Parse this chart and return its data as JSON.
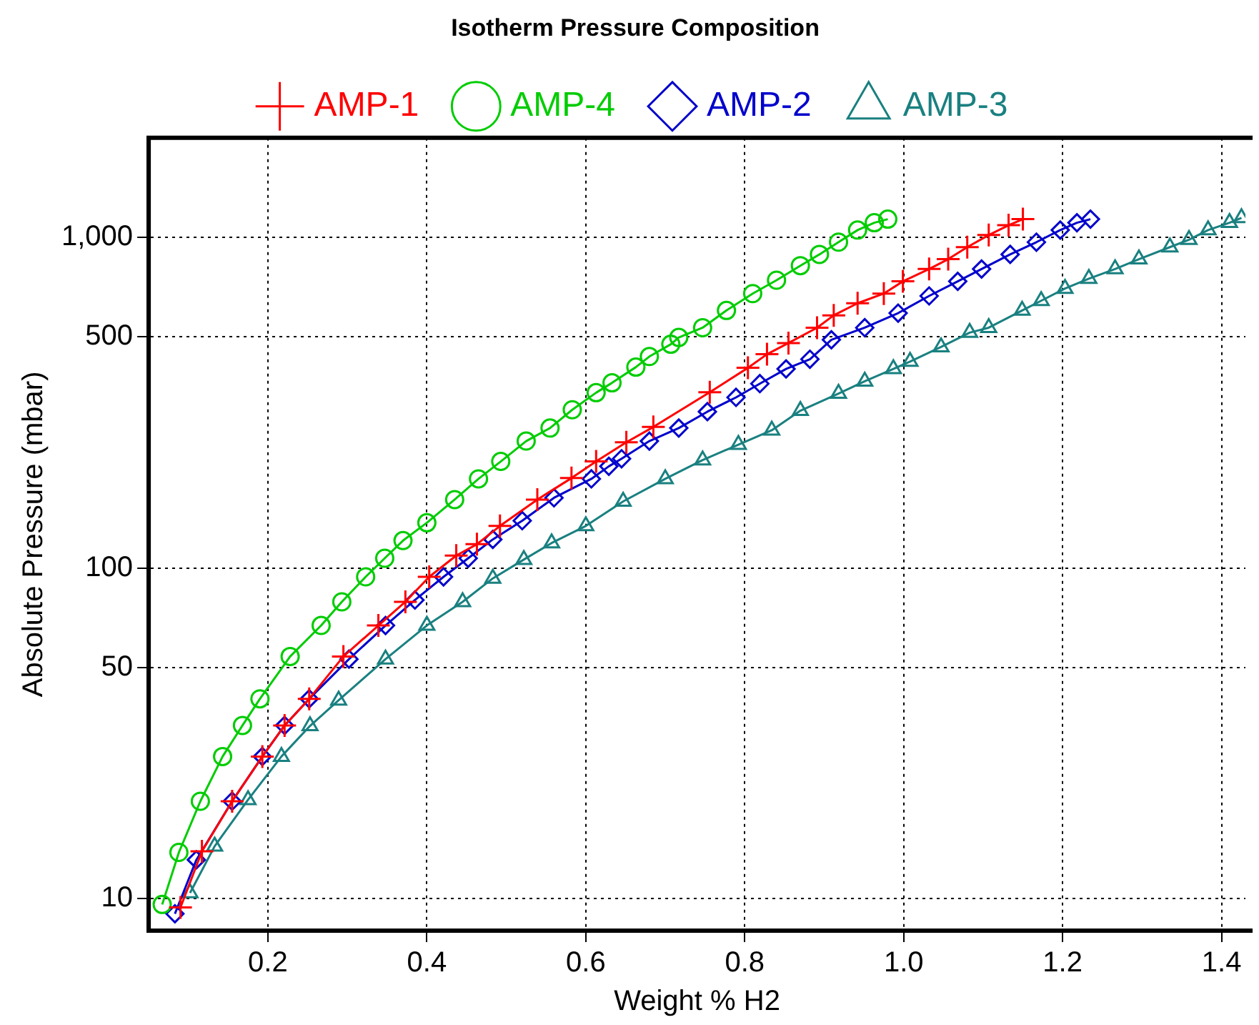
{
  "chart_data": {
    "type": "line",
    "title": "Isotherm Pressure Composition",
    "xlabel": "Weight % H2",
    "ylabel": "Absolute Pressure (mbar)",
    "log": "y",
    "grid": true,
    "legend": "top",
    "line_style": "solid",
    "xlim": [
      0.05,
      1.43
    ],
    "xticks": [
      0.2,
      0.4,
      0.6,
      0.8,
      {
        "value": 1,
        "label": "1.0"
      },
      1.2,
      1.4
    ],
    "ylim": [
      8,
      2000
    ],
    "yticks": [
      10,
      50,
      100,
      500,
      {
        "value": 1000,
        "label": "1,000"
      }
    ],
    "series": [
      {
        "name": "AMP-1",
        "color": "#ff0000",
        "marker": "cross",
        "x": [
          0.09,
          0.117,
          0.155,
          0.193,
          0.221,
          0.252,
          0.295,
          0.339,
          0.373,
          0.403,
          0.437,
          0.463,
          0.492,
          0.539,
          0.582,
          0.613,
          0.651,
          0.685,
          0.756,
          0.804,
          0.828,
          0.855,
          0.891,
          0.912,
          0.942,
          0.975,
          0.999,
          1.032,
          1.056,
          1.08,
          1.107,
          1.132,
          1.15
        ],
        "values": [
          9.4,
          13.9,
          19.7,
          26.9,
          33.4,
          40.2,
          54,
          67,
          79,
          94,
          109,
          118,
          134,
          161,
          187,
          210,
          240,
          267,
          340,
          403,
          443,
          479,
          533,
          581,
          632,
          676,
          736,
          802,
          859,
          934,
          1016,
          1088,
          1135
        ]
      },
      {
        "name": "AMP-4",
        "color": "#00cc00",
        "marker": "circle",
        "x": [
          0.067,
          0.088,
          0.115,
          0.143,
          0.168,
          0.19,
          0.228,
          0.267,
          0.293,
          0.323,
          0.347,
          0.37,
          0.4,
          0.435,
          0.465,
          0.493,
          0.525,
          0.555,
          0.583,
          0.613,
          0.633,
          0.663,
          0.68,
          0.707,
          0.717,
          0.747,
          0.777,
          0.81,
          0.84,
          0.87,
          0.894,
          0.918,
          0.942,
          0.963,
          0.98
        ],
        "values": [
          9.6,
          13.8,
          19.7,
          26.9,
          33.4,
          40.2,
          54,
          67,
          79,
          94,
          107,
          121,
          137,
          161,
          186,
          210,
          242,
          265,
          301,
          339,
          363,
          405,
          436,
          475,
          498,
          533,
          601,
          676,
          742,
          821,
          888,
          967,
          1052,
          1107,
          1135
        ]
      },
      {
        "name": "AMP-2",
        "color": "#0000cc",
        "marker": "diamond",
        "x": [
          0.083,
          0.11,
          0.155,
          0.193,
          0.221,
          0.252,
          0.302,
          0.348,
          0.385,
          0.421,
          0.452,
          0.483,
          0.52,
          0.56,
          0.607,
          0.629,
          0.645,
          0.68,
          0.717,
          0.753,
          0.789,
          0.819,
          0.852,
          0.882,
          0.909,
          0.951,
          0.993,
          1.032,
          1.068,
          1.098,
          1.134,
          1.167,
          1.197,
          1.218,
          1.235
        ],
        "values": [
          9,
          13.1,
          19.7,
          26.9,
          33.4,
          40.2,
          53,
          67,
          80,
          94,
          107,
          122,
          139,
          163,
          186,
          203,
          214,
          242,
          265,
          297,
          328,
          361,
          400,
          428,
          490,
          533,
          590,
          665,
          736,
          802,
          888,
          967,
          1052,
          1107,
          1135
        ]
      },
      {
        "name": "AMP-3",
        "color": "#1a8080",
        "marker": "triangle",
        "x": [
          0.102,
          0.133,
          0.175,
          0.217,
          0.253,
          0.289,
          0.348,
          0.4,
          0.445,
          0.483,
          0.522,
          0.557,
          0.6,
          0.647,
          0.7,
          0.747,
          0.792,
          0.834,
          0.87,
          0.918,
          0.951,
          0.987,
          1.008,
          1.047,
          1.083,
          1.107,
          1.149,
          1.173,
          1.203,
          1.233,
          1.266,
          1.296,
          1.335,
          1.359,
          1.383,
          1.41,
          1.425
        ],
        "values": [
          10.4,
          14.4,
          19.9,
          26.9,
          33.3,
          39.8,
          53,
          67,
          79,
          93,
          106,
          119,
          134,
          159,
          186,
          212,
          236,
          261,
          299,
          337,
          367,
          400,
          421,
          466,
          515,
          533,
          601,
          643,
          700,
          750,
          802,
          859,
          934,
          984,
          1052,
          1107,
          1145
        ]
      }
    ]
  }
}
